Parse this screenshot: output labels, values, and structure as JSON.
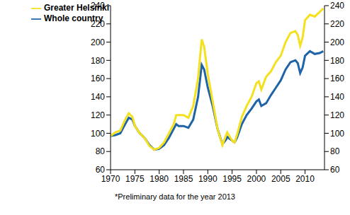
{
  "chart_data": {
    "type": "line",
    "x": [
      1970,
      1971,
      1972,
      1973,
      1973.75,
      1974.5,
      1975,
      1976,
      1977,
      1978,
      1979,
      1980,
      1981,
      1982,
      1983,
      1983.5,
      1984,
      1985,
      1986,
      1987,
      1988,
      1988.75,
      1989.25,
      1990,
      1991,
      1992,
      1993,
      1993.75,
      1994,
      1995,
      1995.5,
      1996,
      1997,
      1998,
      1999,
      2000,
      2000.5,
      2001,
      2002,
      2003,
      2004,
      2005,
      2006,
      2007,
      2008,
      2008.5,
      2009,
      2009.5,
      2010,
      2011,
      2012,
      2013,
      2013.75
    ],
    "series": [
      {
        "name": "Whole country",
        "color": "#1f64a8",
        "values": [
          97,
          98,
          100,
          110,
          117,
          115,
          108,
          100,
          95,
          87,
          82,
          83,
          87,
          95,
          105,
          110,
          108,
          108,
          106,
          115,
          140,
          175,
          170,
          150,
          130,
          105,
          88,
          93,
          96,
          92,
          90,
          95,
          110,
          120,
          127,
          135,
          137,
          130,
          133,
          142,
          150,
          158,
          170,
          178,
          180,
          177,
          166,
          172,
          185,
          190,
          187,
          188,
          190
        ]
      },
      {
        "name": "Greater Helsinki",
        "color": "#f5e01e",
        "values": [
          97,
          101,
          103,
          115,
          122,
          118,
          108,
          100,
          95,
          86,
          82,
          84,
          90,
          100,
          110,
          120,
          120,
          120,
          117,
          130,
          160,
          203,
          195,
          165,
          135,
          105,
          87,
          98,
          101,
          92,
          90,
          98,
          118,
          130,
          140,
          155,
          157,
          148,
          162,
          168,
          178,
          185,
          200,
          210,
          212,
          208,
          196,
          205,
          224,
          230,
          228,
          233,
          237
        ]
      }
    ],
    "xlim": [
      1970,
      2014
    ],
    "xticks": [
      1970,
      1975,
      1980,
      1985,
      1990,
      1995,
      2000,
      2005,
      2010
    ],
    "ylim": [
      60,
      240
    ],
    "yticks": [
      60,
      80,
      100,
      120,
      140,
      160,
      180,
      200,
      220,
      240
    ],
    "y2lim": [
      60,
      240
    ],
    "y2ticks": [
      60,
      80,
      100,
      120,
      140,
      160,
      180,
      200,
      220,
      240
    ],
    "grid": false,
    "legend": "upper left",
    "annotations": [
      "*Preliminary data for the year 2013"
    ]
  }
}
